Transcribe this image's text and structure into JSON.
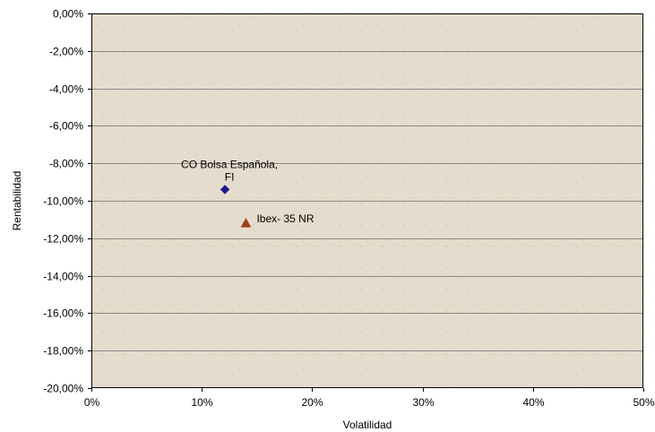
{
  "chart_data": {
    "type": "scatter",
    "title": "",
    "xlabel": "Volatilidad",
    "ylabel": "Rentabilidad",
    "xlim": [
      0,
      50
    ],
    "ylim": [
      -20,
      0
    ],
    "x_ticks": [
      0,
      10,
      20,
      30,
      40,
      50
    ],
    "x_tick_labels": [
      "0%",
      "10%",
      "20%",
      "30%",
      "40%",
      "50%"
    ],
    "y_ticks": [
      0,
      -2,
      -4,
      -6,
      -8,
      -10,
      -12,
      -14,
      -16,
      -18,
      -20
    ],
    "y_tick_labels": [
      "0,00%",
      "-2,00%",
      "-4,00%",
      "-6,00%",
      "-8,00%",
      "-10,00%",
      "-12,00%",
      "-14,00%",
      "-16,00%",
      "-18,00%",
      "-20,00%"
    ],
    "grid": "horizontal",
    "legend": "none",
    "series": [
      {
        "label_lines": [
          "CO Bolsa Española,",
          "FI"
        ],
        "label_position": "above",
        "marker": "diamond",
        "color": "#1a1a8c",
        "x": 12.1,
        "y": -9.4
      },
      {
        "label_lines": [
          "Ibex- 35 NR"
        ],
        "label_position": "right",
        "marker": "triangle",
        "color": "#a0401a",
        "x": 14.0,
        "y": -11.2
      }
    ],
    "colors": {
      "plot_background": "#e6dccd",
      "gridline": "#8a8a8a",
      "axis_line": "#000000"
    }
  }
}
